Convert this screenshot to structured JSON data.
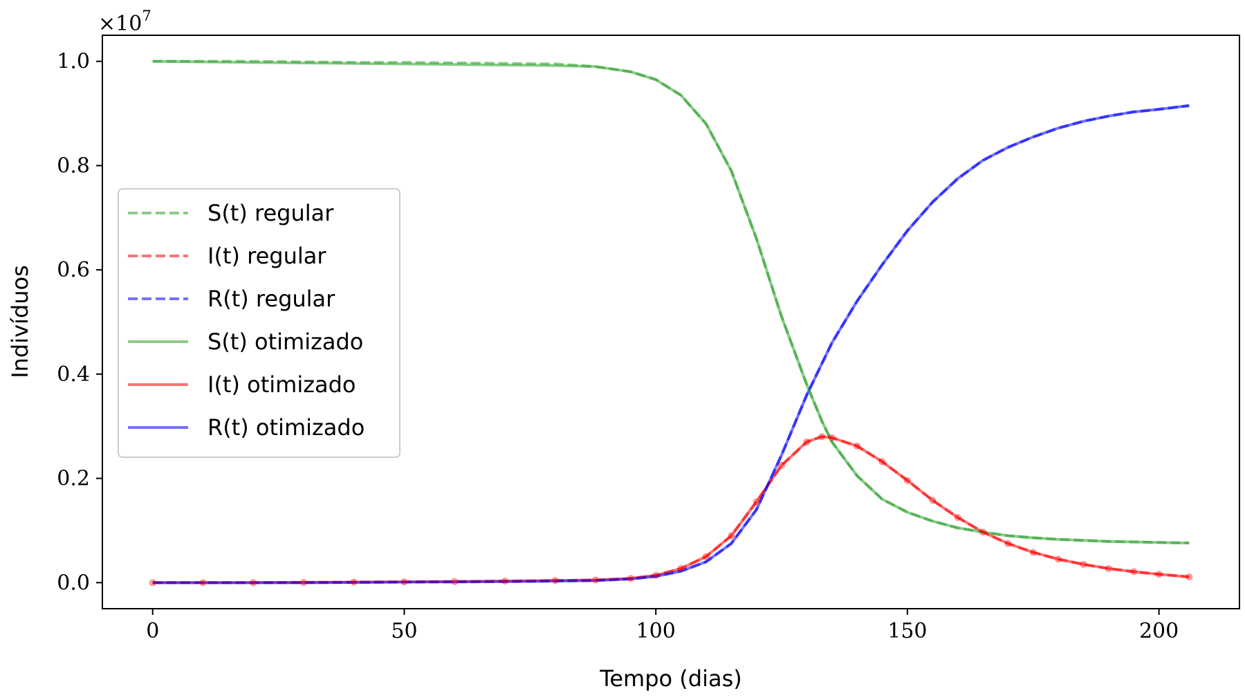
{
  "chart_data": {
    "type": "line",
    "title": "",
    "xlabel": "Tempo (dias)",
    "ylabel": "Indivíduos",
    "y_offset_text": {
      "base": "×10",
      "exponent": "7"
    },
    "xlim": [
      -10,
      216
    ],
    "ylim": [
      -0.05,
      1.05
    ],
    "x_scale_note": "",
    "xticks": [
      0,
      50,
      100,
      150,
      200
    ],
    "xtick_labels": [
      "0",
      "50",
      "100",
      "150",
      "200"
    ],
    "yticks": [
      0.0,
      0.2,
      0.4,
      0.6,
      0.8,
      1.0
    ],
    "ytick_labels": [
      "0.0",
      "0.2",
      "0.4",
      "0.6",
      "0.8",
      "1.0"
    ],
    "grid": false,
    "legend_position": "center-left",
    "x": [
      0,
      10,
      20,
      30,
      40,
      50,
      60,
      70,
      80,
      88,
      95,
      100,
      105,
      110,
      115,
      120,
      125,
      130,
      133,
      135,
      140,
      145,
      150,
      155,
      160,
      165,
      170,
      175,
      180,
      185,
      190,
      195,
      200,
      206
    ],
    "series": [
      {
        "name": "S(t) regular",
        "color": "#2ca02c",
        "style": "dashed",
        "values": [
          1.0,
          1.0,
          1.0,
          0.999,
          0.998,
          0.998,
          0.997,
          0.996,
          0.995,
          0.99,
          0.98,
          0.965,
          0.935,
          0.88,
          0.79,
          0.66,
          0.51,
          0.38,
          0.31,
          0.27,
          0.205,
          0.16,
          0.135,
          0.118,
          0.105,
          0.097,
          0.09,
          0.086,
          0.083,
          0.081,
          0.079,
          0.078,
          0.077,
          0.076
        ]
      },
      {
        "name": "I(t) regular",
        "color": "#ff0000",
        "style": "dashed",
        "values": [
          0.0,
          0.0,
          0.0,
          0.0005,
          0.001,
          0.0015,
          0.002,
          0.003,
          0.004,
          0.005,
          0.008,
          0.014,
          0.027,
          0.05,
          0.09,
          0.155,
          0.225,
          0.27,
          0.28,
          0.278,
          0.262,
          0.232,
          0.196,
          0.158,
          0.125,
          0.097,
          0.075,
          0.058,
          0.045,
          0.035,
          0.027,
          0.021,
          0.016,
          0.011
        ]
      },
      {
        "name": "R(t) regular",
        "color": "#0000ff",
        "style": "dashed",
        "values": [
          0.0,
          0.0,
          0.0,
          0.0,
          0.0005,
          0.001,
          0.0015,
          0.002,
          0.003,
          0.004,
          0.007,
          0.012,
          0.022,
          0.04,
          0.075,
          0.14,
          0.245,
          0.36,
          0.42,
          0.46,
          0.54,
          0.61,
          0.675,
          0.73,
          0.775,
          0.81,
          0.835,
          0.855,
          0.872,
          0.885,
          0.895,
          0.903,
          0.908,
          0.915
        ]
      },
      {
        "name": "S(t) otimizado",
        "color": "#2ca02c",
        "style": "solid",
        "values": [
          1.0,
          0.999,
          0.998,
          0.997,
          0.996,
          0.995,
          0.994,
          0.993,
          0.992,
          0.99,
          0.98,
          0.965,
          0.935,
          0.88,
          0.79,
          0.66,
          0.51,
          0.38,
          0.31,
          0.27,
          0.205,
          0.16,
          0.135,
          0.118,
          0.105,
          0.097,
          0.09,
          0.086,
          0.083,
          0.081,
          0.079,
          0.078,
          0.077,
          0.076
        ]
      },
      {
        "name": "I(t) otimizado",
        "color": "#ff0000",
        "style": "solid",
        "values": [
          0.0,
          0.0,
          0.0,
          0.0005,
          0.001,
          0.0015,
          0.002,
          0.003,
          0.004,
          0.005,
          0.008,
          0.014,
          0.027,
          0.05,
          0.09,
          0.155,
          0.225,
          0.27,
          0.28,
          0.278,
          0.262,
          0.232,
          0.196,
          0.158,
          0.125,
          0.097,
          0.075,
          0.058,
          0.045,
          0.035,
          0.027,
          0.021,
          0.016,
          0.011
        ]
      },
      {
        "name": "R(t) otimizado",
        "color": "#0000ff",
        "style": "solid",
        "values": [
          0.0,
          0.0,
          0.0,
          0.0,
          0.0005,
          0.001,
          0.0015,
          0.002,
          0.003,
          0.004,
          0.007,
          0.012,
          0.022,
          0.04,
          0.075,
          0.14,
          0.245,
          0.36,
          0.42,
          0.46,
          0.54,
          0.61,
          0.675,
          0.73,
          0.775,
          0.81,
          0.835,
          0.855,
          0.872,
          0.885,
          0.895,
          0.903,
          0.908,
          0.915
        ]
      }
    ],
    "observed_points": {
      "color": "#ff0000",
      "x": [
        0,
        10,
        20,
        30,
        40,
        50,
        60,
        70,
        80,
        88,
        95,
        100,
        105,
        110,
        115,
        120,
        125,
        130,
        133,
        135,
        140,
        145,
        150,
        155,
        160,
        165,
        170,
        175,
        180,
        185,
        190,
        195,
        200,
        206
      ],
      "values": [
        0.0,
        0.0,
        0.0,
        0.0005,
        0.001,
        0.0015,
        0.002,
        0.003,
        0.004,
        0.005,
        0.008,
        0.014,
        0.027,
        0.05,
        0.09,
        0.155,
        0.225,
        0.27,
        0.28,
        0.278,
        0.262,
        0.232,
        0.196,
        0.158,
        0.125,
        0.097,
        0.075,
        0.058,
        0.045,
        0.035,
        0.027,
        0.021,
        0.016,
        0.011
      ]
    }
  }
}
